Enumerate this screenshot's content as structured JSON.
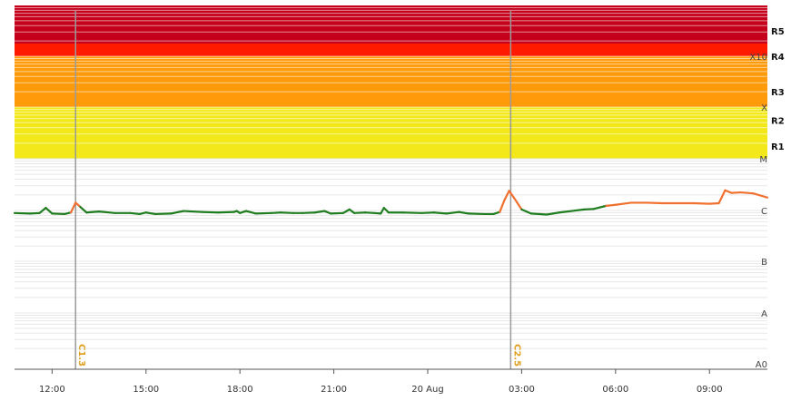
{
  "chart_data": {
    "type": "line",
    "title": "",
    "xlabel": "",
    "ylabel": "",
    "x_ticks": [
      "12:00",
      "15:00",
      "18:00",
      "21:00",
      "20 Aug",
      "03:00",
      "06:00",
      "09:00"
    ],
    "x_tick_hours": [
      12,
      15,
      18,
      21,
      24,
      27,
      30,
      33
    ],
    "xlim_hours": [
      10.8,
      34.85
    ],
    "flux_class_labels": [
      "A0",
      "A",
      "B",
      "C",
      "M",
      "X",
      "X10"
    ],
    "flux_class_levels": [
      0,
      1,
      2,
      3,
      4,
      5,
      6
    ],
    "radio_blackout_labels": [
      "R1",
      "R2",
      "R3",
      "R4",
      "R5"
    ],
    "radio_blackout_levels": [
      4.25,
      4.75,
      5.3,
      6.0,
      6.5
    ],
    "ylim": [
      0,
      7
    ],
    "band_colors": {
      "yellow": "#f2e81a",
      "orange": "#ff9a0a",
      "red": "#ff1a00",
      "darkred": "#c4001a"
    },
    "line_colors": {
      "quiet": "#1f7d1f",
      "elevated": "#f07030"
    },
    "flare_markers": [
      {
        "label": "C1.3",
        "hour": 12.75
      },
      {
        "label": "C2.5",
        "hour": 26.65
      }
    ],
    "series": [
      {
        "values": [
          [
            10.8,
            2.95
          ],
          [
            11.3,
            2.94
          ],
          [
            11.6,
            2.95
          ],
          [
            11.8,
            3.05
          ],
          [
            12.0,
            2.94
          ],
          [
            12.4,
            2.93
          ],
          [
            12.6,
            2.96
          ],
          [
            12.75,
            3.15
          ],
          [
            12.9,
            3.07
          ],
          [
            13.1,
            2.96
          ],
          [
            13.5,
            2.98
          ],
          [
            14.0,
            2.95
          ],
          [
            14.5,
            2.95
          ],
          [
            14.8,
            2.93
          ],
          [
            15.0,
            2.96
          ],
          [
            15.3,
            2.93
          ],
          [
            15.8,
            2.94
          ],
          [
            16.2,
            2.99
          ],
          [
            16.8,
            2.97
          ],
          [
            17.3,
            2.96
          ],
          [
            17.8,
            2.97
          ],
          [
            17.9,
            2.99
          ],
          [
            18.0,
            2.95
          ],
          [
            18.2,
            2.99
          ],
          [
            18.5,
            2.94
          ],
          [
            19.0,
            2.95
          ],
          [
            19.3,
            2.96
          ],
          [
            19.7,
            2.95
          ],
          [
            20.0,
            2.95
          ],
          [
            20.4,
            2.96
          ],
          [
            20.7,
            2.99
          ],
          [
            20.9,
            2.94
          ],
          [
            21.3,
            2.95
          ],
          [
            21.5,
            3.02
          ],
          [
            21.65,
            2.95
          ],
          [
            22.0,
            2.96
          ],
          [
            22.3,
            2.95
          ],
          [
            22.5,
            2.94
          ],
          [
            22.6,
            3.05
          ],
          [
            22.75,
            2.96
          ],
          [
            23.2,
            2.96
          ],
          [
            23.8,
            2.95
          ],
          [
            24.2,
            2.96
          ],
          [
            24.6,
            2.94
          ],
          [
            25.0,
            2.97
          ],
          [
            25.3,
            2.94
          ],
          [
            25.8,
            2.93
          ],
          [
            26.1,
            2.93
          ],
          [
            26.3,
            2.97
          ],
          [
            26.45,
            3.2
          ],
          [
            26.6,
            3.38
          ],
          [
            26.75,
            3.25
          ],
          [
            27.0,
            3.02
          ],
          [
            27.3,
            2.94
          ],
          [
            27.8,
            2.92
          ],
          [
            28.2,
            2.96
          ],
          [
            28.6,
            2.99
          ],
          [
            29.0,
            3.02
          ],
          [
            29.3,
            3.03
          ],
          [
            29.7,
            3.09
          ],
          [
            30.0,
            3.11
          ],
          [
            30.5,
            3.15
          ],
          [
            31.0,
            3.15
          ],
          [
            31.5,
            3.14
          ],
          [
            32.0,
            3.14
          ],
          [
            32.5,
            3.14
          ],
          [
            33.0,
            3.13
          ],
          [
            33.3,
            3.14
          ],
          [
            33.5,
            3.39
          ],
          [
            33.7,
            3.34
          ],
          [
            34.0,
            3.35
          ],
          [
            34.4,
            3.33
          ],
          [
            34.85,
            3.25
          ]
        ]
      }
    ]
  }
}
